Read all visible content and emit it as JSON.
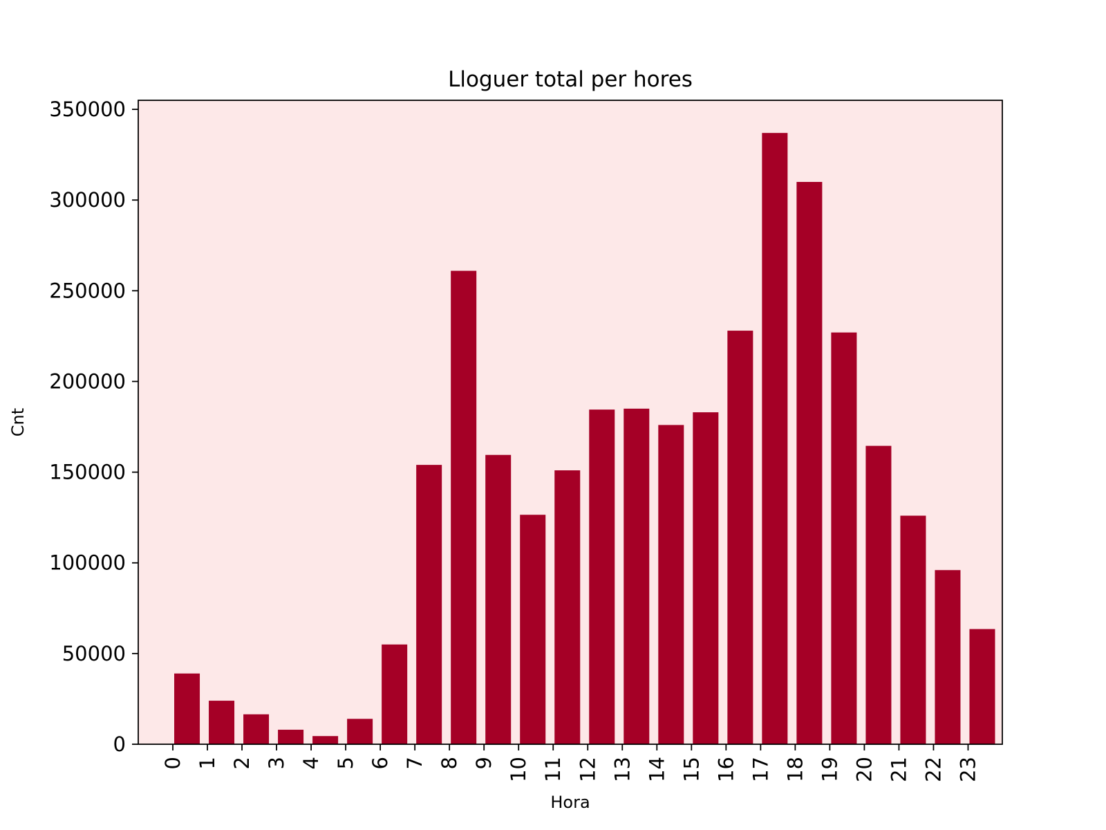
{
  "chart_data": {
    "type": "bar",
    "title": "Lloguer total per hores",
    "xlabel": "Hora",
    "ylabel": "Cnt",
    "categories": [
      "0",
      "1",
      "2",
      "3",
      "4",
      "5",
      "6",
      "7",
      "8",
      "9",
      "10",
      "11",
      "12",
      "13",
      "14",
      "15",
      "16",
      "17",
      "18",
      "19",
      "20",
      "21",
      "22",
      "23"
    ],
    "values": [
      39000,
      24000,
      16500,
      8000,
      4500,
      14000,
      55000,
      154000,
      261000,
      159500,
      126500,
      151000,
      184500,
      185000,
      176000,
      183000,
      228000,
      337000,
      310000,
      227000,
      164500,
      126000,
      96000,
      63500
    ],
    "ylim": [
      0,
      355000
    ],
    "yticks": [
      "0",
      "50000",
      "100000",
      "150000",
      "200000",
      "250000",
      "300000",
      "350000"
    ],
    "ytick_values": [
      0,
      50000,
      100000,
      150000,
      200000,
      250000,
      300000,
      350000
    ],
    "grid": false,
    "legend": "none",
    "colors": {
      "bar": "#a50026",
      "plot_background": "#fde8e8",
      "axes": "#000000"
    }
  }
}
